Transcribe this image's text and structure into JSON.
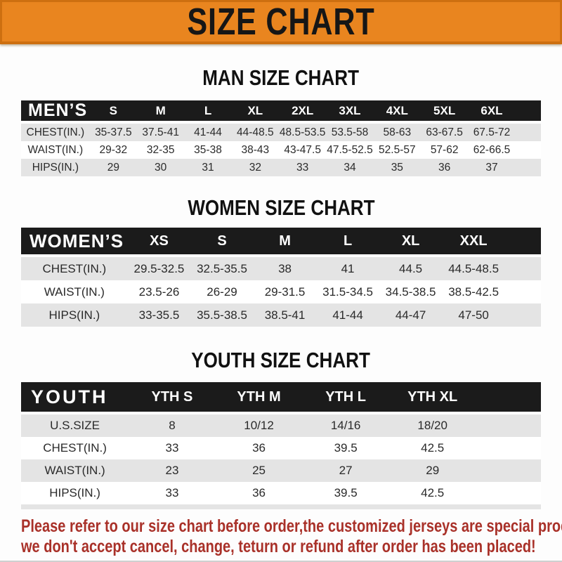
{
  "banner": {
    "title": "SIZE CHART"
  },
  "colors": {
    "banner_orange": "#e9851f",
    "banner_border": "#cd6f10",
    "band_black": "#1b1b1b",
    "row_gray": "#e4e4e4",
    "footer_red": "#a93129"
  },
  "sections": [
    {
      "id": "men",
      "title": "MAN SIZE CHART",
      "corner_label": "MEN’S",
      "columns": [
        "S",
        "M",
        "L",
        "XL",
        "2XL",
        "3XL",
        "4XL",
        "5XL",
        "6XL"
      ],
      "rows": [
        {
          "label": "CHEST(IN.)",
          "values": [
            "35-37.5",
            "37.5-41",
            "41-44",
            "44-48.5",
            "48.5-53.5",
            "53.5-58",
            "58-63",
            "63-67.5",
            "67.5-72"
          ]
        },
        {
          "label": "WAIST(IN.)",
          "values": [
            "29-32",
            "32-35",
            "35-38",
            "38-43",
            "43-47.5",
            "47.5-52.5",
            "52.5-57",
            "57-62",
            "62-66.5"
          ]
        },
        {
          "label": "HIPS(IN.)",
          "values": [
            "29",
            "30",
            "31",
            "32",
            "33",
            "34",
            "35",
            "36",
            "37"
          ]
        }
      ]
    },
    {
      "id": "women",
      "title": "WOMEN SIZE CHART",
      "corner_label": "WOMEN’S",
      "columns": [
        "XS",
        "S",
        "M",
        "L",
        "XL",
        "XXL"
      ],
      "rows": [
        {
          "label": "CHEST(IN.)",
          "values": [
            "29.5-32.5",
            "32.5-35.5",
            "38",
            "41",
            "44.5",
            "44.5-48.5"
          ]
        },
        {
          "label": "WAIST(IN.)",
          "values": [
            "23.5-26",
            "26-29",
            "29-31.5",
            "31.5-34.5",
            "34.5-38.5",
            "38.5-42.5"
          ]
        },
        {
          "label": "HIPS(IN.)",
          "values": [
            "33-35.5",
            "35.5-38.5",
            "38.5-41",
            "41-44",
            "44-47",
            "47-50"
          ]
        }
      ]
    },
    {
      "id": "youth",
      "title": "YOUTH SIZE CHART",
      "corner_label": "YOUTH",
      "columns": [
        "YTH S",
        "YTH M",
        "YTH L",
        "YTH XL"
      ],
      "rows": [
        {
          "label": "U.S.SIZE",
          "values": [
            "8",
            "10/12",
            "14/16",
            "18/20"
          ]
        },
        {
          "label": "CHEST(IN.)",
          "values": [
            "33",
            "36",
            "39.5",
            "42.5"
          ]
        },
        {
          "label": "WAIST(IN.)",
          "values": [
            "23",
            "25",
            "27",
            "29"
          ]
        },
        {
          "label": "HIPS(IN.)",
          "values": [
            "33",
            "36",
            "39.5",
            "42.5"
          ]
        }
      ]
    }
  ],
  "footer": {
    "lines": [
      "Please refer to our size chart before order,the customized jerseys are special products,",
      "we don't accept cancel, change, teturn or refund after order has been placed!"
    ]
  }
}
